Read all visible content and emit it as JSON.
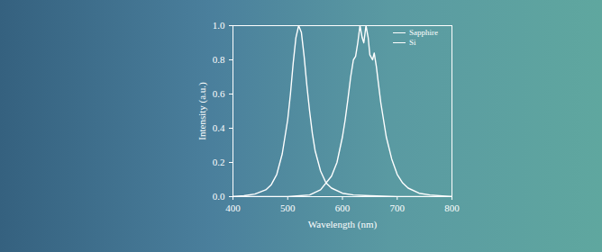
{
  "chart_data": {
    "type": "line",
    "x_label": "Wavelength (nm)",
    "y_label": "Intensity (a.u.)",
    "xlim": [
      400,
      800
    ],
    "xticks": [
      400,
      500,
      600,
      700,
      800
    ],
    "ylim": [
      0,
      1
    ],
    "yticks": [
      {
        "value": 0,
        "label": "0.0"
      },
      {
        "value": 0.2,
        "label": "0.2"
      },
      {
        "value": 0.4,
        "label": "0.4"
      },
      {
        "value": 0.6,
        "label": "0.6"
      },
      {
        "value": 0.8,
        "label": "0.8"
      },
      {
        "value": 1,
        "label": "1.0"
      }
    ],
    "legend": "top-right",
    "series": [
      {
        "name": "Sapphire",
        "color": "#ffffff",
        "x": [
          400,
          420,
          440,
          460,
          470,
          480,
          490,
          500,
          505,
          510,
          515,
          520,
          525,
          530,
          535,
          540,
          545,
          550,
          560,
          570,
          580,
          600,
          620,
          650,
          700,
          800
        ],
        "values": [
          0,
          0.005,
          0.015,
          0.04,
          0.07,
          0.13,
          0.25,
          0.45,
          0.6,
          0.78,
          0.93,
          1.0,
          0.96,
          0.82,
          0.65,
          0.5,
          0.37,
          0.27,
          0.15,
          0.08,
          0.05,
          0.02,
          0.01,
          0.005,
          0,
          0
        ]
      },
      {
        "name": "Si",
        "color": "#ffffff",
        "x": [
          400,
          500,
          540,
          560,
          580,
          590,
          600,
          605,
          610,
          615,
          620,
          624,
          628,
          632,
          636,
          639,
          643,
          647,
          650,
          655,
          658,
          662,
          665,
          670,
          675,
          680,
          690,
          700,
          710,
          720,
          740,
          760,
          800
        ],
        "values": [
          0,
          0,
          0.01,
          0.04,
          0.12,
          0.2,
          0.35,
          0.45,
          0.57,
          0.7,
          0.8,
          0.82,
          0.9,
          1.0,
          0.93,
          0.9,
          1.0,
          0.93,
          0.83,
          0.8,
          0.84,
          0.76,
          0.68,
          0.55,
          0.45,
          0.35,
          0.22,
          0.13,
          0.08,
          0.05,
          0.02,
          0.01,
          0
        ]
      }
    ]
  }
}
